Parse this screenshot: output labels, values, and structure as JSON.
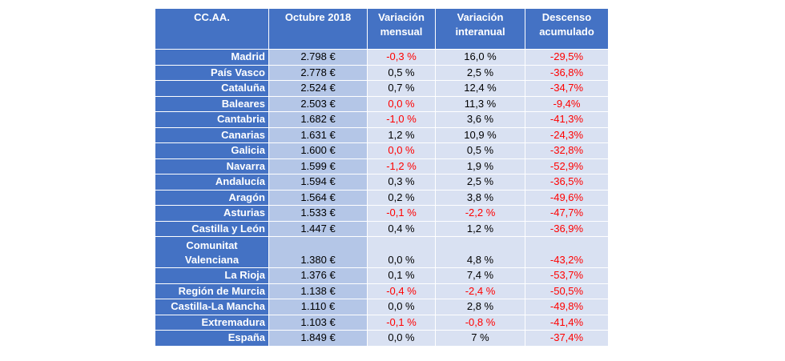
{
  "table": {
    "headers": [
      "CC.AA.",
      "Octubre 2018",
      "Variación mensual",
      "Variación interanual",
      "Descenso acumulado"
    ],
    "rows": [
      {
        "region": "Madrid",
        "price": "2.798 €",
        "monthly": "-0,3 %",
        "yearly": "16,0 %",
        "cumulative": "-29,5%"
      },
      {
        "region": "País Vasco",
        "price": "2.778 €",
        "monthly": "0,5 %",
        "yearly": "2,5 %",
        "cumulative": "-36,8%"
      },
      {
        "region": "Cataluña",
        "price": "2.524 €",
        "monthly": "0,7 %",
        "yearly": "12,4 %",
        "cumulative": "-34,7%"
      },
      {
        "region": "Baleares",
        "price": "2.503 €",
        "monthly": "0,0 %",
        "yearly": "11,3 %",
        "cumulative": "-9,4%"
      },
      {
        "region": "Cantabria",
        "price": "1.682 €",
        "monthly": "-1,0 %",
        "yearly": "3,6 %",
        "cumulative": "-41,3%"
      },
      {
        "region": "Canarias",
        "price": "1.631 €",
        "monthly": "1,2 %",
        "yearly": "10,9 %",
        "cumulative": "-24,3%"
      },
      {
        "region": "Galicia",
        "price": "1.600 €",
        "monthly": "0,0 %",
        "yearly": "0,5 %",
        "cumulative": "-32,8%"
      },
      {
        "region": "Navarra",
        "price": "1.599 €",
        "monthly": "-1,2 %",
        "yearly": "1,9 %",
        "cumulative": "-52,9%"
      },
      {
        "region": "Andalucía",
        "price": "1.594 €",
        "monthly": "0,3 %",
        "yearly": "2,5 %",
        "cumulative": "-36,5%"
      },
      {
        "region": "Aragón",
        "price": "1.564 €",
        "monthly": "0,2 %",
        "yearly": "3,8 %",
        "cumulative": "-49,6%"
      },
      {
        "region": "Asturias",
        "price": "1.533 €",
        "monthly": "-0,1 %",
        "yearly": "-2,2 %",
        "cumulative": "-47,7%"
      },
      {
        "region": "Castilla y León",
        "price": "1.447 €",
        "monthly": "0,4 %",
        "yearly": "1,2 %",
        "cumulative": "-36,9%"
      },
      {
        "region": "Comunitat Valenciana",
        "price": "1.380 €",
        "monthly": "0,0 %",
        "yearly": "4,8 %",
        "cumulative": "-43,2%"
      },
      {
        "region": "La Rioja",
        "price": "1.376 €",
        "monthly": "0,1 %",
        "yearly": "7,4 %",
        "cumulative": "-53,7%"
      },
      {
        "region": "Región de Murcia",
        "price": "1.138 €",
        "monthly": "-0,4 %",
        "yearly": "-2,4 %",
        "cumulative": "-50,5%"
      },
      {
        "region": "Castilla-La Mancha",
        "price": "1.110 €",
        "monthly": "0,0 %",
        "yearly": "2,8 %",
        "cumulative": "-49,8%"
      },
      {
        "region": "Extremadura",
        "price": "1.103 €",
        "monthly": "-0,1 %",
        "yearly": "-0,8 %",
        "cumulative": "-41,4%"
      },
      {
        "region": "España",
        "price": "1.849 €",
        "monthly": "0,0 %",
        "yearly": "7 %",
        "cumulative": "-37,4%"
      }
    ],
    "red_cells": {
      "monthly": [
        0,
        3,
        4,
        6,
        7,
        10,
        14,
        16
      ],
      "yearly": [
        10,
        14,
        16
      ],
      "cumulative": [
        0,
        1,
        2,
        3,
        4,
        5,
        6,
        7,
        8,
        9,
        10,
        11,
        12,
        13,
        14,
        15,
        16,
        17
      ]
    },
    "colors": {
      "header_bg": "#4472c4",
      "cell_bg": "#d9e1f2",
      "price_bg": "#b4c6e7",
      "negative_text": "#ff0000"
    }
  }
}
